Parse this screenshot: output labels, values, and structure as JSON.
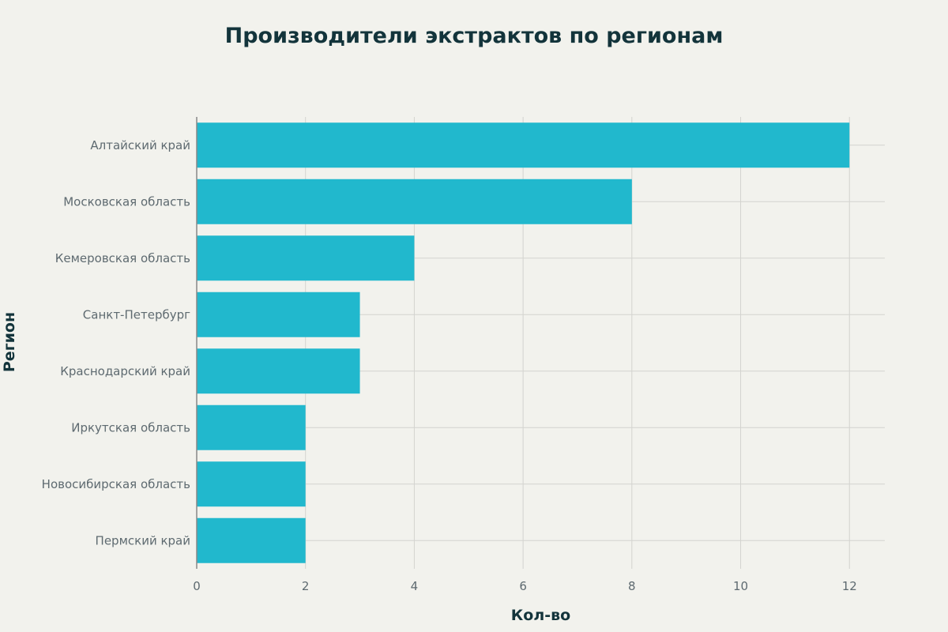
{
  "chart_data": {
    "type": "bar",
    "orientation": "horizontal",
    "title": "Производители экстрактов по регионам",
    "xlabel": "Кол-во",
    "ylabel": "Регион",
    "categories": [
      "Алтайский край",
      "Московская область",
      "Кемеровская область",
      "Санкт-Петербург",
      "Краснодарский край",
      "Иркутская область",
      "Новосибирская область",
      "Пермский край"
    ],
    "values": [
      12,
      8,
      4,
      3,
      3,
      2,
      2,
      2
    ],
    "xlim": [
      0,
      12.65
    ],
    "xticks": [
      0,
      2,
      4,
      6,
      8,
      10,
      12
    ],
    "grid": true,
    "legend": "none",
    "bar_color": "#21b8cd",
    "background": "#f2f2ed"
  }
}
